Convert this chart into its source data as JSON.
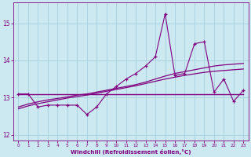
{
  "x": [
    0,
    1,
    2,
    3,
    4,
    5,
    6,
    7,
    8,
    9,
    10,
    11,
    12,
    13,
    14,
    15,
    16,
    17,
    18,
    19,
    20,
    21,
    22,
    23
  ],
  "line_jagged": [
    13.1,
    13.1,
    12.75,
    12.8,
    12.8,
    12.8,
    12.8,
    12.55,
    12.75,
    13.1,
    13.3,
    13.5,
    13.65,
    13.85,
    14.1,
    15.25,
    13.6,
    13.65,
    14.45,
    14.5,
    13.15,
    13.5,
    12.9,
    13.2
  ],
  "line_flat": [
    13.1,
    13.1,
    13.1,
    13.1,
    13.1,
    13.1,
    13.1,
    13.1,
    13.1,
    13.1,
    13.1,
    13.1,
    13.1,
    13.1,
    13.1,
    13.1,
    13.1,
    13.1,
    13.1,
    13.1,
    13.1,
    13.1,
    13.1,
    13.1
  ],
  "line_reg1": [
    12.75,
    12.83,
    12.89,
    12.94,
    12.98,
    13.02,
    13.07,
    13.1,
    13.15,
    13.2,
    13.25,
    13.3,
    13.35,
    13.42,
    13.5,
    13.58,
    13.65,
    13.7,
    13.75,
    13.8,
    13.85,
    13.88,
    13.9,
    13.92
  ],
  "line_reg2": [
    12.7,
    12.78,
    12.84,
    12.89,
    12.94,
    12.99,
    13.03,
    13.07,
    13.12,
    13.17,
    13.22,
    13.27,
    13.32,
    13.38,
    13.44,
    13.5,
    13.55,
    13.6,
    13.64,
    13.68,
    13.71,
    13.73,
    13.75,
    13.77
  ],
  "line_color": "#800080",
  "bg_color": "#cce8f0",
  "grid_color": "#aad4e0",
  "xlabel": "Windchill (Refroidissement éolien,°C)",
  "ylim": [
    11.85,
    15.55
  ],
  "xlim": [
    -0.5,
    23.5
  ],
  "yticks": [
    12,
    13,
    14,
    15
  ],
  "xticks": [
    0,
    1,
    2,
    3,
    4,
    5,
    6,
    7,
    8,
    9,
    10,
    11,
    12,
    13,
    14,
    15,
    16,
    17,
    18,
    19,
    20,
    21,
    22,
    23
  ]
}
